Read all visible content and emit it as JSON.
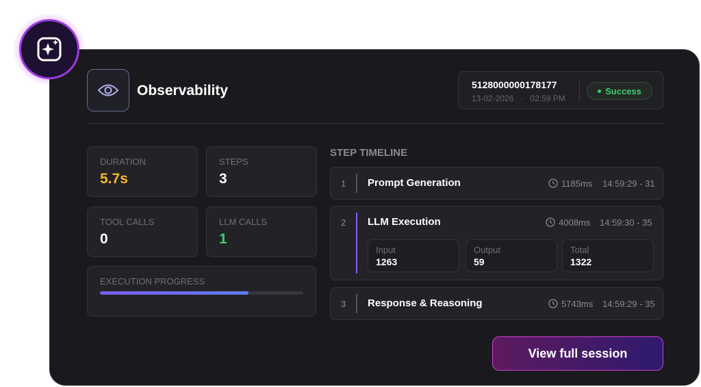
{
  "header": {
    "title": "Observability",
    "session_id": "5128000000178177",
    "date": "13-02-2026",
    "separator": "·",
    "time": "02:59 PM",
    "status": "Success"
  },
  "stats": [
    {
      "label": "DURATION",
      "value": "5.7s"
    },
    {
      "label": "STEPS",
      "value": 3
    },
    {
      "label": "TOOL CALLS",
      "value": 0
    },
    {
      "label": "LLM CALLS",
      "value": 1
    }
  ],
  "progress": {
    "label": "EXECUTION PROGRESS",
    "value": 73
  },
  "timeline": {
    "title": "STEP TIMELINE",
    "steps": [
      {
        "index": 1,
        "name": "Prompt Generation",
        "duration": "1185ms",
        "time": "14:59:29 - 31"
      },
      {
        "index": 2,
        "name": "LLM Execution",
        "duration": "4008ms",
        "time": "14:59:30 - 35",
        "metrics": [
          {
            "label": "Input",
            "value": 1263
          },
          {
            "label": "Output",
            "value": 59
          },
          {
            "label": "Total",
            "value": 1322
          }
        ]
      },
      {
        "index": 3,
        "name": "Response & Reasoning",
        "duration": "5743ms",
        "time": "14:59:29 - 35"
      }
    ]
  },
  "button": "View full session"
}
